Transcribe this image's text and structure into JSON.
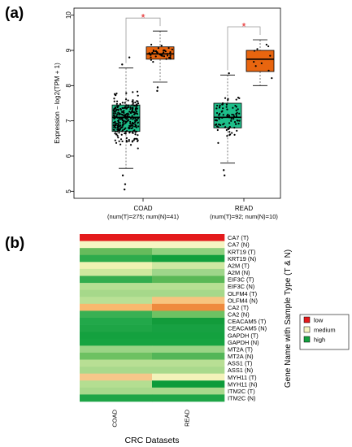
{
  "panels": {
    "a_label": "(a)",
    "b_label": "(b)"
  },
  "chart_data": [
    {
      "type": "boxplot",
      "ylabel": "Expression − log2(TPM + 1)",
      "ylim": [
        4.8,
        10.2
      ],
      "yticks": [
        5,
        6,
        7,
        8,
        9,
        10
      ],
      "groups": [
        {
          "name": "COAD",
          "subtitle": "(num(T)=275; num(N)=41)",
          "significance": "*",
          "tumor": {
            "color": "#1ebf8a",
            "min": 5.65,
            "q1": 6.7,
            "median": 7.1,
            "q3": 7.45,
            "max": 8.5,
            "outliers": [
              5.05,
              5.2,
              5.45,
              8.6,
              8.8
            ]
          },
          "normal": {
            "color": "#e8650f",
            "min": 8.1,
            "q1": 8.75,
            "median": 8.9,
            "q3": 9.1,
            "max": 9.55,
            "outliers": [
              7.85,
              7.95
            ]
          }
        },
        {
          "name": "READ",
          "subtitle": "(num(T)=92; num(N)=10)",
          "significance": "*",
          "tumor": {
            "color": "#1ebf8a",
            "min": 5.8,
            "q1": 6.8,
            "median": 7.1,
            "q3": 7.5,
            "max": 8.3,
            "outliers": [
              5.45,
              5.6,
              8.35
            ]
          },
          "normal": {
            "color": "#e8650f",
            "min": 8.0,
            "q1": 8.4,
            "median": 8.75,
            "q3": 9.0,
            "max": 9.3,
            "outliers": []
          }
        }
      ]
    },
    {
      "type": "heatmap",
      "xlabel": "CRC Datasets",
      "ylabel": "Gene Name with Sample Type (T & N)",
      "columns": [
        "COAD",
        "READ"
      ],
      "rows": [
        "CA7 (T)",
        "CA7 (N)",
        "KRT19 (T)",
        "KRT19 (N)",
        "A2M (T)",
        "A2M (N)",
        "EIF3C (T)",
        "EIF3C (N)",
        "OLFM4 (T)",
        "OLFM4 (N)",
        "CA2 (T)",
        "CA2 (N)",
        "CEACAM5 (T)",
        "CEACAM5 (N)",
        "GAPDH (T)",
        "GAPDH (N)",
        "MT2A (T)",
        "MT2A (N)",
        "ASS1 (T)",
        "ASS1 (N)",
        "MYH11 (T)",
        "MYH11 (N)",
        "ITM2C (T)",
        "ITM2C (N)"
      ],
      "cells": [
        [
          "#e41a1c",
          "#e41a1c"
        ],
        [
          "#f6f5c3",
          "#f6f5c3"
        ],
        [
          "#66bb5c",
          "#8fd07e"
        ],
        [
          "#2eab4c",
          "#119f3d"
        ],
        [
          "#f0f2b2",
          "#cfe8a2"
        ],
        [
          "#cde89e",
          "#9fd68a"
        ],
        [
          "#33ad4e",
          "#5ab856"
        ],
        [
          "#b7df93",
          "#b7df93"
        ],
        [
          "#a6d88a",
          "#a6d88a"
        ],
        [
          "#b9e095",
          "#f7c47f"
        ],
        [
          "#f8b96e",
          "#ef8a3e"
        ],
        [
          "#39b053",
          "#6ec263"
        ],
        [
          "#22a84a",
          "#129c3b"
        ],
        [
          "#1ea546",
          "#17a142"
        ],
        [
          "#14a13f",
          "#14a13f"
        ],
        [
          "#16a341",
          "#16a341"
        ],
        [
          "#9ad486",
          "#9ad486"
        ],
        [
          "#6dc162",
          "#53b658"
        ],
        [
          "#b8df94",
          "#b8df94"
        ],
        [
          "#a9d98c",
          "#a9d98c"
        ],
        [
          "#f6c78a",
          "#f3f2b9"
        ],
        [
          "#b4de91",
          "#0c9b3a"
        ],
        [
          "#a8d88b",
          "#a8d88b"
        ],
        [
          "#1ea546",
          "#1ea546"
        ]
      ],
      "legend": [
        {
          "label": "low",
          "color": "#e41a1c"
        },
        {
          "label": "medium",
          "color": "#f6f5c3"
        },
        {
          "label": "high",
          "color": "#14a13f"
        }
      ]
    }
  ]
}
